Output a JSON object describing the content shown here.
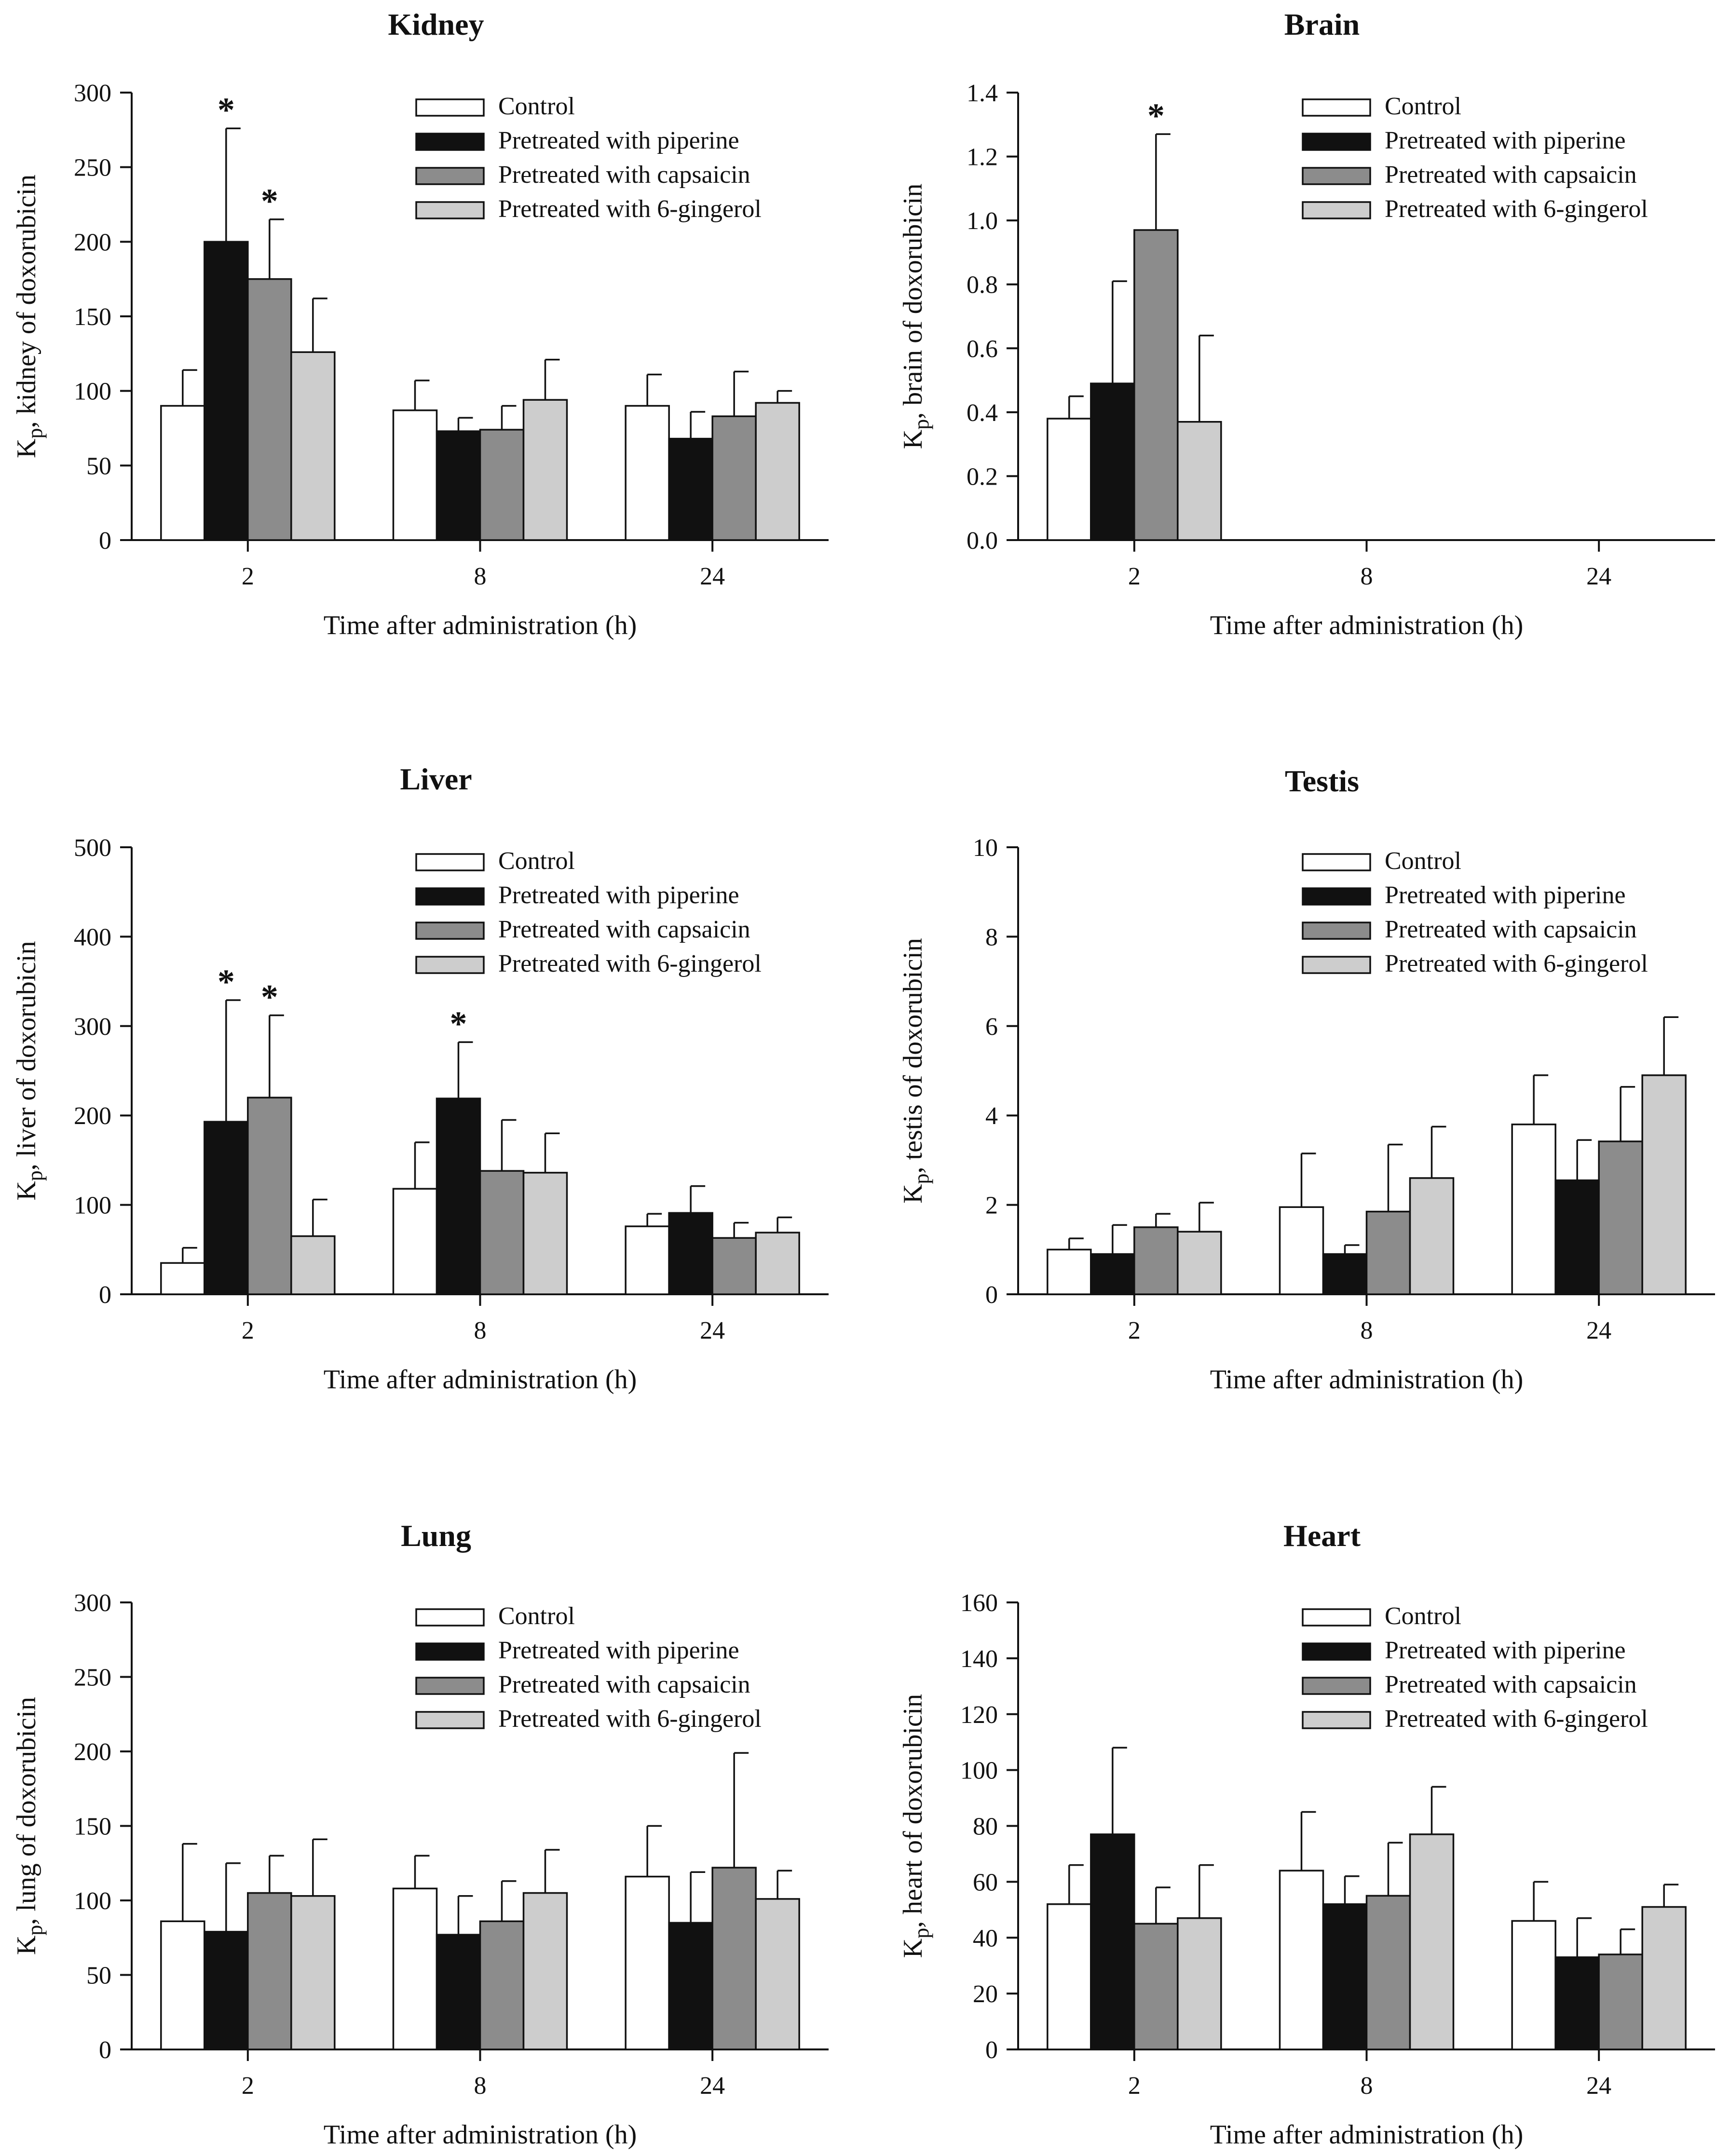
{
  "figure": {
    "description_title": ""
  },
  "colors": {
    "Control": "#ffffff",
    "Pretreated with piperine": "#111111",
    "Pretreated with capsaicin": "#8c8c8c",
    "Pretreated with 6-gingerol": "#cdcdcd",
    "stroke": "#111111"
  },
  "chart_data": [
    {
      "type": "bar",
      "title": "Kidney",
      "xlabel": "Time after administration (h)",
      "ylabel_main": "K",
      "ylabel_sub": "p",
      "ylabel_rest": ", kidney of doxorubicin",
      "categories": [
        "2",
        "8",
        "24"
      ],
      "ylim": [
        0,
        300
      ],
      "yticks": [
        0,
        50,
        100,
        150,
        200,
        250,
        300
      ],
      "series": [
        {
          "name": "Control",
          "values": [
            90,
            87,
            90
          ],
          "errors": [
            24,
            20,
            21
          ],
          "sig": [
            false,
            false,
            false
          ]
        },
        {
          "name": "Pretreated with piperine",
          "values": [
            200,
            73,
            68
          ],
          "errors": [
            76,
            9,
            18
          ],
          "sig": [
            true,
            false,
            false
          ]
        },
        {
          "name": "Pretreated with capsaicin",
          "values": [
            175,
            74,
            83
          ],
          "errors": [
            40,
            16,
            30
          ],
          "sig": [
            true,
            false,
            false
          ]
        },
        {
          "name": "Pretreated with 6-gingerol",
          "values": [
            126,
            94,
            92
          ],
          "errors": [
            36,
            27,
            8
          ],
          "sig": [
            false,
            false,
            false
          ]
        }
      ]
    },
    {
      "type": "bar",
      "title": "Brain",
      "xlabel": "Time after administration (h)",
      "ylabel_main": "K",
      "ylabel_sub": "p",
      "ylabel_rest": ", brain of doxorubicin",
      "categories": [
        "2",
        "8",
        "24"
      ],
      "ylim": [
        0,
        1.4
      ],
      "yticks": [
        "0.0",
        "0.2",
        "0.4",
        "0.6",
        "0.8",
        "1.0",
        "1.2",
        "1.4"
      ],
      "series": [
        {
          "name": "Control",
          "values": [
            0.38,
            null,
            null
          ],
          "errors": [
            0.07,
            null,
            null
          ],
          "sig": [
            false,
            false,
            false
          ]
        },
        {
          "name": "Pretreated with piperine",
          "values": [
            0.49,
            null,
            null
          ],
          "errors": [
            0.32,
            null,
            null
          ],
          "sig": [
            false,
            false,
            false
          ]
        },
        {
          "name": "Pretreated with capsaicin",
          "values": [
            0.97,
            null,
            null
          ],
          "errors": [
            0.3,
            null,
            null
          ],
          "sig": [
            true,
            false,
            false
          ]
        },
        {
          "name": "Pretreated with 6-gingerol",
          "values": [
            0.37,
            null,
            null
          ],
          "errors": [
            0.27,
            null,
            null
          ],
          "sig": [
            false,
            false,
            false
          ]
        }
      ]
    },
    {
      "type": "bar",
      "title": "Liver",
      "xlabel": "Time after administration (h)",
      "ylabel_main": "K",
      "ylabel_sub": "p",
      "ylabel_rest": ", liver of doxorubicin",
      "categories": [
        "2",
        "8",
        "24"
      ],
      "ylim": [
        0,
        500
      ],
      "yticks": [
        0,
        100,
        200,
        300,
        400,
        500
      ],
      "series": [
        {
          "name": "Control",
          "values": [
            35,
            118,
            76
          ],
          "errors": [
            17,
            52,
            14
          ],
          "sig": [
            false,
            false,
            false
          ]
        },
        {
          "name": "Pretreated with piperine",
          "values": [
            193,
            219,
            91
          ],
          "errors": [
            136,
            63,
            30
          ],
          "sig": [
            true,
            true,
            false
          ]
        },
        {
          "name": "Pretreated with capsaicin",
          "values": [
            220,
            138,
            63
          ],
          "errors": [
            92,
            57,
            17
          ],
          "sig": [
            true,
            false,
            false
          ]
        },
        {
          "name": "Pretreated with 6-gingerol",
          "values": [
            65,
            136,
            69
          ],
          "errors": [
            41,
            44,
            17
          ],
          "sig": [
            false,
            false,
            false
          ]
        }
      ]
    },
    {
      "type": "bar",
      "title": "Testis",
      "xlabel": "Time after administration (h)",
      "ylabel_main": "K",
      "ylabel_sub": "p",
      "ylabel_rest": ", testis of doxorubicin",
      "categories": [
        "2",
        "8",
        "24"
      ],
      "ylim": [
        0,
        10
      ],
      "yticks": [
        0,
        2,
        4,
        6,
        8,
        10
      ],
      "series": [
        {
          "name": "Control",
          "values": [
            1.0,
            1.95,
            3.8
          ],
          "errors": [
            0.25,
            1.2,
            1.1
          ],
          "sig": [
            false,
            false,
            false
          ]
        },
        {
          "name": "Pretreated with piperine",
          "values": [
            0.9,
            0.9,
            2.55
          ],
          "errors": [
            0.65,
            0.2,
            0.9
          ],
          "sig": [
            false,
            false,
            false
          ]
        },
        {
          "name": "Pretreated with capsaicin",
          "values": [
            1.5,
            1.85,
            3.42
          ],
          "errors": [
            0.3,
            1.5,
            1.22
          ],
          "sig": [
            false,
            false,
            false
          ]
        },
        {
          "name": "Pretreated with 6-gingerol",
          "values": [
            1.4,
            2.6,
            4.9
          ],
          "errors": [
            0.65,
            1.15,
            1.3
          ],
          "sig": [
            false,
            false,
            false
          ]
        }
      ]
    },
    {
      "type": "bar",
      "title": "Lung",
      "xlabel": "Time after administration (h)",
      "ylabel_main": "K",
      "ylabel_sub": "p",
      "ylabel_rest": ", lung of doxorubicin",
      "categories": [
        "2",
        "8",
        "24"
      ],
      "ylim": [
        0,
        300
      ],
      "yticks": [
        0,
        50,
        100,
        150,
        200,
        250,
        300
      ],
      "series": [
        {
          "name": "Control",
          "values": [
            86,
            108,
            116
          ],
          "errors": [
            52,
            22,
            34
          ],
          "sig": [
            false,
            false,
            false
          ]
        },
        {
          "name": "Pretreated with piperine",
          "values": [
            79,
            77,
            85
          ],
          "errors": [
            46,
            26,
            34
          ],
          "sig": [
            false,
            false,
            false
          ]
        },
        {
          "name": "Pretreated with capsaicin",
          "values": [
            105,
            86,
            122
          ],
          "errors": [
            25,
            27,
            77
          ],
          "sig": [
            false,
            false,
            false
          ]
        },
        {
          "name": "Pretreated with 6-gingerol",
          "values": [
            103,
            105,
            101
          ],
          "errors": [
            38,
            29,
            19
          ],
          "sig": [
            false,
            false,
            false
          ]
        }
      ]
    },
    {
      "type": "bar",
      "title": "Heart",
      "xlabel": "Time after administration (h)",
      "ylabel_main": "K",
      "ylabel_sub": "p",
      "ylabel_rest": ", heart of doxorubicin",
      "categories": [
        "2",
        "8",
        "24"
      ],
      "ylim": [
        0,
        160
      ],
      "yticks": [
        0,
        20,
        40,
        60,
        80,
        100,
        120,
        140,
        160
      ],
      "series": [
        {
          "name": "Control",
          "values": [
            52,
            64,
            46
          ],
          "errors": [
            14,
            21,
            14
          ],
          "sig": [
            false,
            false,
            false
          ]
        },
        {
          "name": "Pretreated with piperine",
          "values": [
            77,
            52,
            33
          ],
          "errors": [
            31,
            10,
            14
          ],
          "sig": [
            false,
            false,
            false
          ]
        },
        {
          "name": "Pretreated with capsaicin",
          "values": [
            45,
            55,
            34
          ],
          "errors": [
            13,
            19,
            9
          ],
          "sig": [
            false,
            false,
            false
          ]
        },
        {
          "name": "Pretreated with 6-gingerol",
          "values": [
            47,
            77,
            51
          ],
          "errors": [
            19,
            17,
            8
          ],
          "sig": [
            false,
            false,
            false
          ]
        }
      ]
    }
  ]
}
